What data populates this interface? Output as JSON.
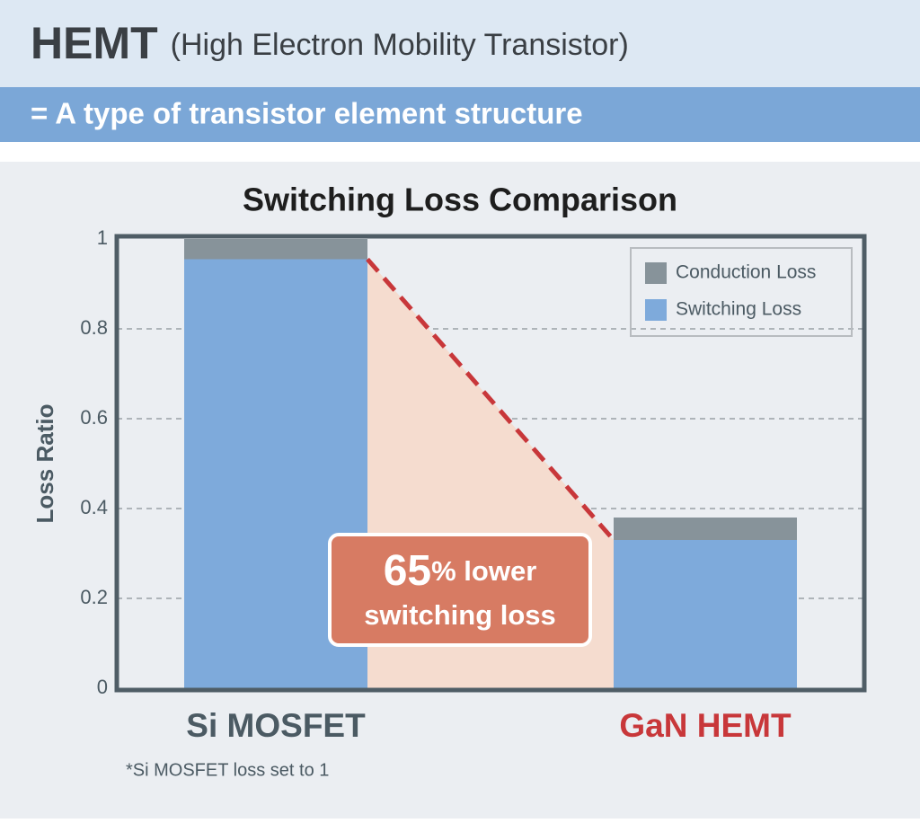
{
  "header": {
    "title": "HEMT",
    "subtitle": "(High Electron Mobility Transistor)",
    "banner": "= A type of transistor element structure"
  },
  "chart_data": {
    "type": "stacked-bar",
    "title": "Switching Loss Comparison",
    "y_label": "Loss Ratio",
    "categories": [
      "Si MOSFET",
      "GaN HEMT"
    ],
    "category_colors": [
      "#4b5a63",
      "#c8373a"
    ],
    "series": [
      {
        "name": "Switching Loss",
        "color": "#7eaadb",
        "values": [
          0.955,
          0.33
        ]
      },
      {
        "name": "Conduction Loss",
        "color": "#87939a",
        "values": [
          0.045,
          0.05
        ]
      }
    ],
    "ylim": [
      0,
      1
    ],
    "yticks": [
      0,
      0.2,
      0.4,
      0.6,
      0.8,
      1
    ],
    "grid": true,
    "legend": "top-right",
    "annotation": {
      "number": "65",
      "text": "% lower",
      "line2": "switching loss"
    },
    "footnote": "*Si MOSFET loss set to 1"
  }
}
